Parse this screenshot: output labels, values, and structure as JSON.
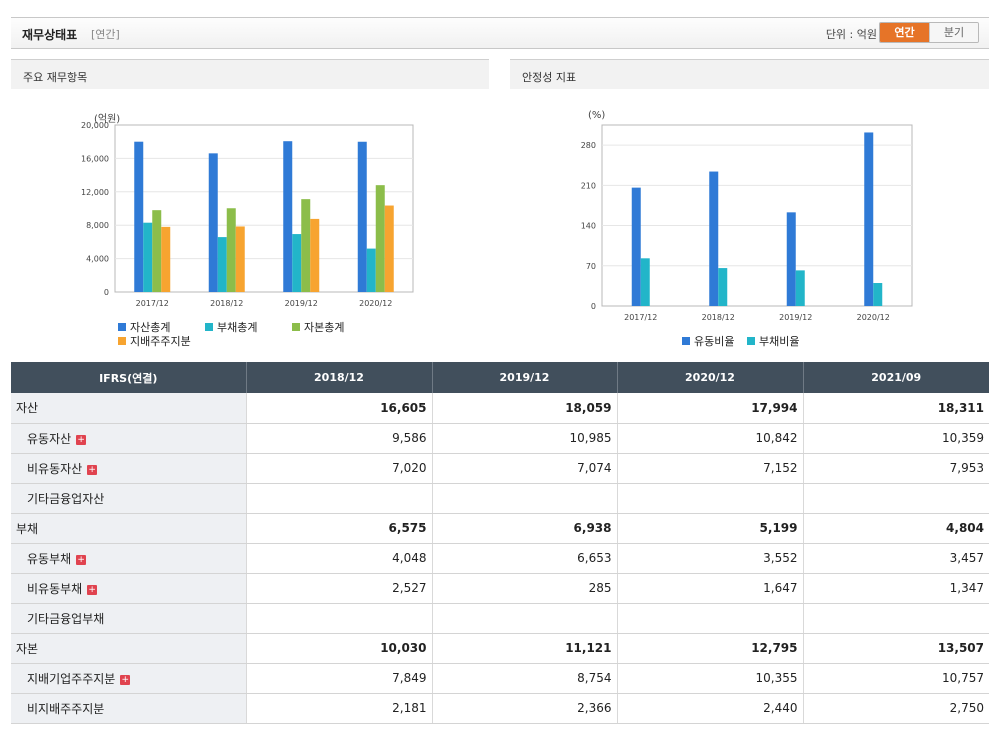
{
  "header": {
    "title": "재무상태표",
    "subtitle": "[연간]",
    "unit": "단위 : 억원",
    "toggle_annual": "연간",
    "toggle_quarter": "분기"
  },
  "left_panel": {
    "title": "주요 재무항목",
    "unit_label": "(억원)"
  },
  "right_panel": {
    "title": "안정성 지표",
    "unit_label": "(%)"
  },
  "colors": {
    "blue": "#2f7ad6",
    "teal": "#22b5c9",
    "green": "#8cbd4a",
    "orange": "#f7a430",
    "accent": "#e67428",
    "table_header": "#414f5c"
  },
  "chart_data": [
    {
      "type": "bar",
      "categories": [
        "2017/12",
        "2018/12",
        "2019/12",
        "2020/12"
      ],
      "ylim": [
        0,
        20000
      ],
      "yticks": [
        "0",
        "4,000",
        "8,000",
        "12,000",
        "16,000",
        "20,000"
      ],
      "ytick_values": [
        0,
        4000,
        8000,
        12000,
        16000,
        20000
      ],
      "series": [
        {
          "name": "자산총계",
          "color": "#2f7ad6",
          "values": [
            18000,
            16605,
            18059,
            17994
          ]
        },
        {
          "name": "부채총계",
          "color": "#22b5c9",
          "values": [
            8300,
            6575,
            6938,
            5199
          ]
        },
        {
          "name": "자본총계",
          "color": "#8cbd4a",
          "values": [
            9800,
            10030,
            11121,
            12795
          ]
        },
        {
          "name": "지배주주지분",
          "color": "#f7a430",
          "values": [
            7800,
            7849,
            8754,
            10355
          ]
        }
      ]
    },
    {
      "type": "bar",
      "categories": [
        "2017/12",
        "2018/12",
        "2019/12",
        "2020/12"
      ],
      "ylim": [
        0,
        315
      ],
      "yticks": [
        "0",
        "70",
        "140",
        "210",
        "280"
      ],
      "ytick_values": [
        0,
        70,
        140,
        210,
        280
      ],
      "series": [
        {
          "name": "유동비율",
          "color": "#2f7ad6",
          "values": [
            206,
            234,
            163,
            302
          ]
        },
        {
          "name": "부채비율",
          "color": "#22b5c9",
          "values": [
            83,
            66,
            62,
            40
          ]
        }
      ]
    }
  ],
  "table": {
    "headers": [
      "IFRS(연결)",
      "2018/12",
      "2019/12",
      "2020/12",
      "2021/09"
    ],
    "rows": [
      {
        "label": "자산",
        "level": 0,
        "expand": false,
        "values": [
          "16,605",
          "18,059",
          "17,994",
          "18,311"
        ]
      },
      {
        "label": "유동자산",
        "level": 1,
        "expand": true,
        "values": [
          "9,586",
          "10,985",
          "10,842",
          "10,359"
        ]
      },
      {
        "label": "비유동자산",
        "level": 1,
        "expand": true,
        "values": [
          "7,020",
          "7,074",
          "7,152",
          "7,953"
        ]
      },
      {
        "label": "기타금융업자산",
        "level": 1,
        "expand": false,
        "values": [
          "",
          "",
          "",
          ""
        ]
      },
      {
        "label": "부채",
        "level": 0,
        "expand": false,
        "values": [
          "6,575",
          "6,938",
          "5,199",
          "4,804"
        ]
      },
      {
        "label": "유동부채",
        "level": 1,
        "expand": true,
        "values": [
          "4,048",
          "6,653",
          "3,552",
          "3,457"
        ]
      },
      {
        "label": "비유동부채",
        "level": 1,
        "expand": true,
        "values": [
          "2,527",
          "285",
          "1,647",
          "1,347"
        ]
      },
      {
        "label": "기타금융업부채",
        "level": 1,
        "expand": false,
        "values": [
          "",
          "",
          "",
          ""
        ]
      },
      {
        "label": "자본",
        "level": 0,
        "expand": false,
        "values": [
          "10,030",
          "11,121",
          "12,795",
          "13,507"
        ]
      },
      {
        "label": "지배기업주주지분",
        "level": 1,
        "expand": true,
        "values": [
          "7,849",
          "8,754",
          "10,355",
          "10,757"
        ]
      },
      {
        "label": "비지배주주지분",
        "level": 1,
        "expand": false,
        "values": [
          "2,181",
          "2,366",
          "2,440",
          "2,750"
        ]
      }
    ]
  }
}
